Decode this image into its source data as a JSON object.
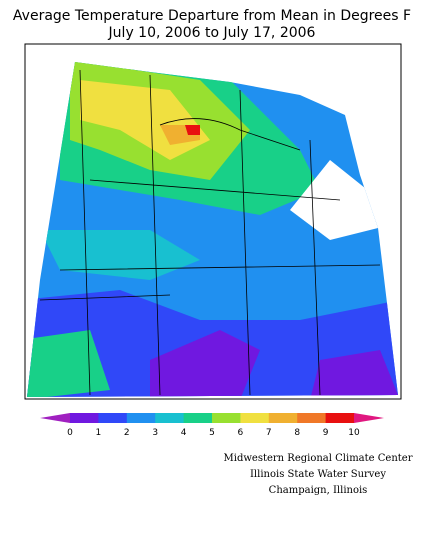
{
  "header": {
    "title_lines": [
      "Average Temperature Departure from Mean in Degrees F",
      "July 10, 2006 to July 17, 2006"
    ]
  },
  "legend": {
    "ticks": [
      0,
      1,
      2,
      3,
      4,
      5,
      6,
      7,
      8,
      9,
      10
    ],
    "colors": [
      "#a020c0",
      "#7018e0",
      "#3048f8",
      "#2090f0",
      "#18c0d0",
      "#18d088",
      "#98e030",
      "#f0e040",
      "#f0b030",
      "#f07828",
      "#e81010",
      "#e01880"
    ]
  },
  "credits": [
    "Midwestern Regional Climate Center",
    "Illinois State Water Survey",
    "Champaign, Illinois"
  ]
}
